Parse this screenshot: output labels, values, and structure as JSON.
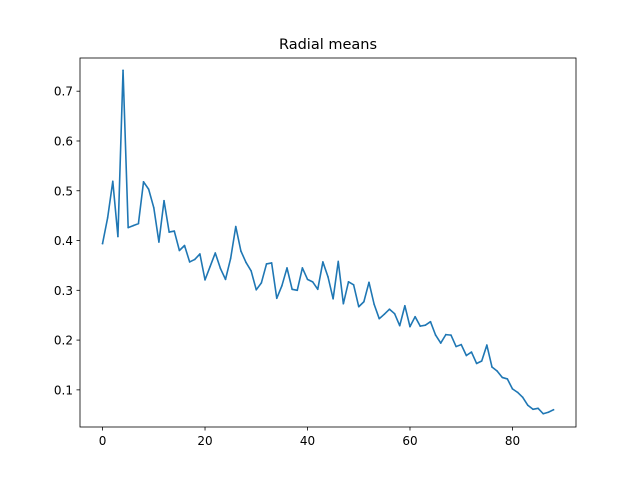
{
  "chart_data": {
    "type": "line",
    "title": "Radial means",
    "xlabel": "",
    "ylabel": "",
    "xlim": [
      -4.4,
      92.4
    ],
    "ylim": [
      0.0254,
      0.7667
    ],
    "x_ticks": [
      0,
      20,
      40,
      60,
      80
    ],
    "y_ticks": [
      0.1,
      0.2,
      0.3,
      0.4,
      0.5,
      0.6,
      0.7
    ],
    "x_tick_labels": [
      "0",
      "20",
      "40",
      "60",
      "80"
    ],
    "y_tick_labels": [
      "0.1",
      "0.2",
      "0.3",
      "0.4",
      "0.5",
      "0.6",
      "0.7"
    ],
    "grid": false,
    "series": [
      {
        "color": "#1f77b4",
        "x": [
          0,
          1,
          2,
          3,
          4,
          5,
          6,
          7,
          8,
          9,
          10,
          11,
          12,
          13,
          14,
          15,
          16,
          17,
          18,
          19,
          20,
          21,
          22,
          23,
          24,
          25,
          26,
          27,
          28,
          29,
          30,
          31,
          32,
          33,
          34,
          35,
          36,
          37,
          38,
          39,
          40,
          41,
          42,
          43,
          44,
          45,
          46,
          47,
          48,
          49,
          50,
          51,
          52,
          53,
          54,
          55,
          56,
          57,
          58,
          59,
          60,
          61,
          62,
          63,
          64,
          65,
          66,
          67,
          68,
          69,
          70,
          71,
          72,
          73,
          74,
          75,
          76,
          77,
          78,
          79,
          80,
          81,
          82,
          83,
          84,
          85,
          86,
          87,
          88
        ],
        "y": [
          0.394,
          0.446,
          0.519,
          0.408,
          0.742,
          0.426,
          0.43,
          0.434,
          0.518,
          0.503,
          0.466,
          0.397,
          0.48,
          0.417,
          0.419,
          0.38,
          0.39,
          0.357,
          0.362,
          0.373,
          0.321,
          0.348,
          0.375,
          0.344,
          0.322,
          0.364,
          0.428,
          0.379,
          0.356,
          0.339,
          0.301,
          0.315,
          0.353,
          0.355,
          0.284,
          0.309,
          0.345,
          0.302,
          0.3,
          0.345,
          0.322,
          0.317,
          0.302,
          0.357,
          0.327,
          0.283,
          0.358,
          0.273,
          0.317,
          0.311,
          0.267,
          0.277,
          0.316,
          0.272,
          0.243,
          0.252,
          0.262,
          0.253,
          0.229,
          0.269,
          0.227,
          0.247,
          0.228,
          0.23,
          0.237,
          0.21,
          0.194,
          0.211,
          0.21,
          0.187,
          0.191,
          0.169,
          0.176,
          0.153,
          0.158,
          0.19,
          0.146,
          0.138,
          0.125,
          0.122,
          0.102,
          0.095,
          0.085,
          0.069,
          0.061,
          0.063,
          0.052,
          0.055,
          0.06
        ]
      }
    ]
  }
}
